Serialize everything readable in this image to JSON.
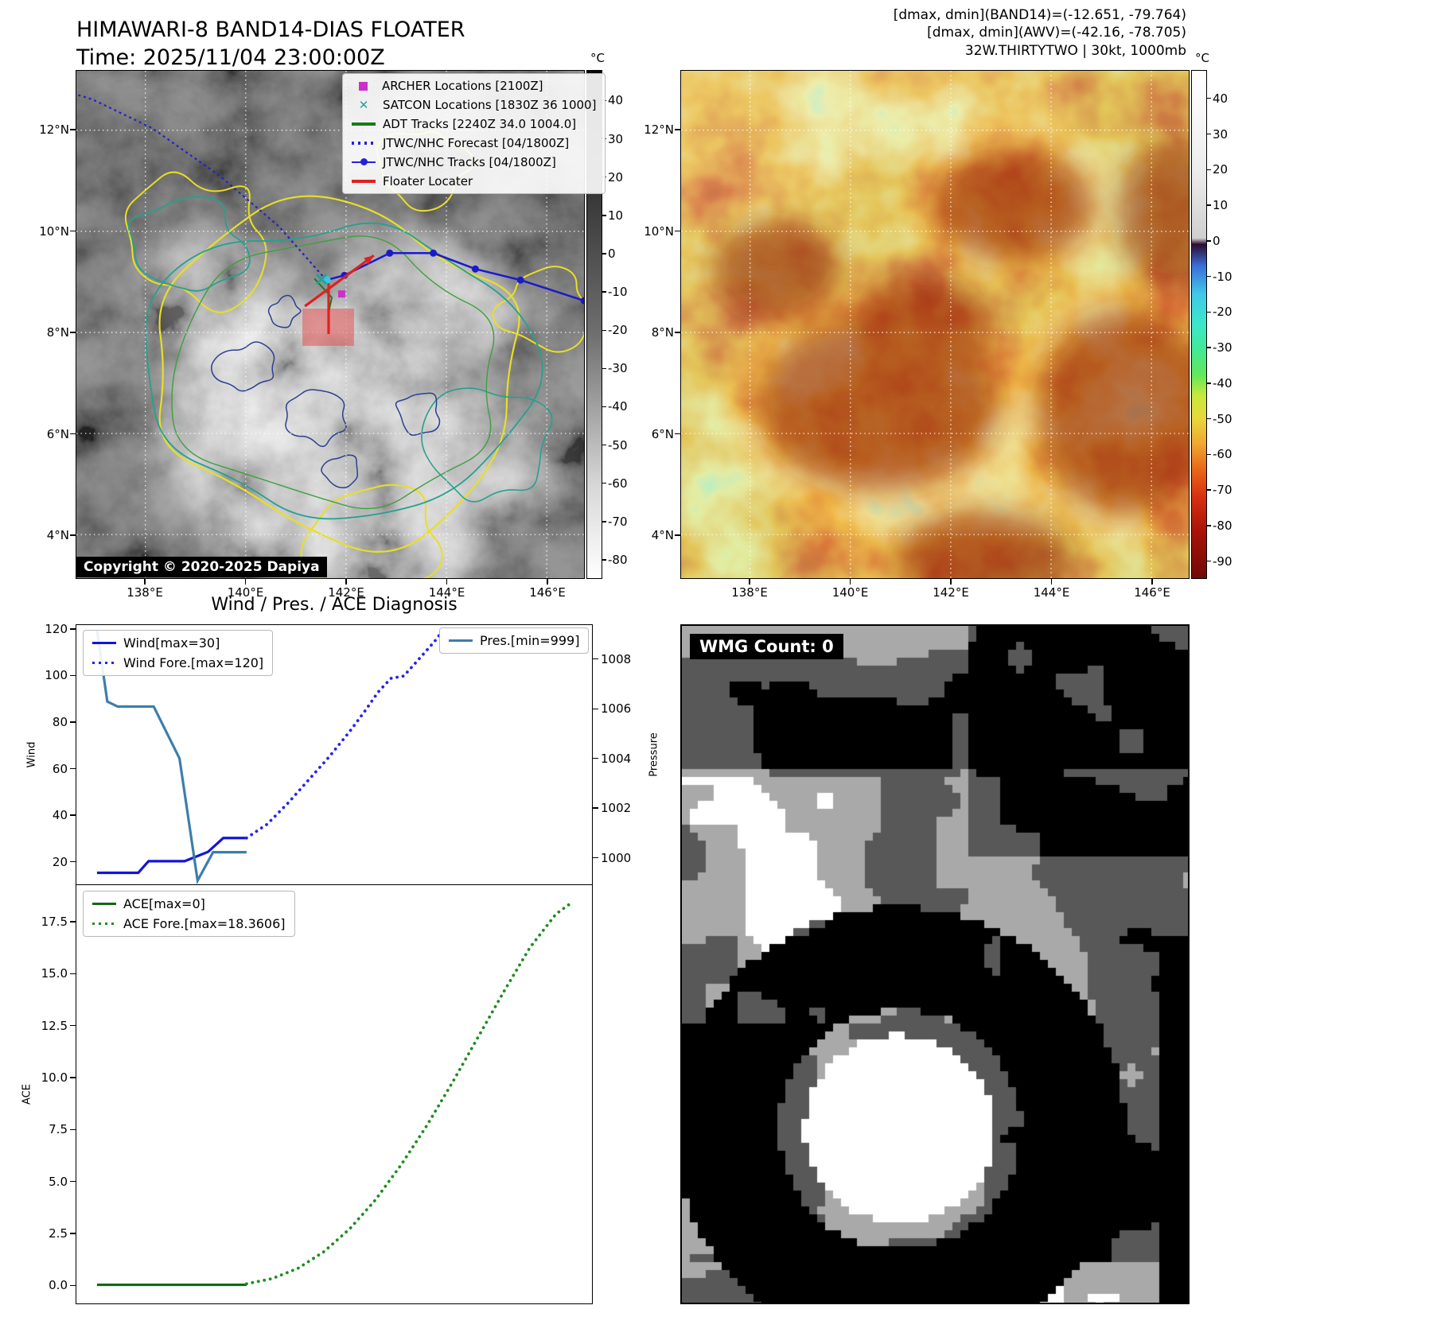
{
  "header": {
    "band14_title": "HIMAWARI-8 BAND14-DIAS FLOATER",
    "band14_time": "Time: 2025/11/04 23:00:00Z",
    "stats_line1": "[dmax, dmin](BAND14)=(-12.651, -79.764)",
    "stats_line2": "[dmax, dmin](AWV)=(-42.16, -78.705)",
    "stats_line3": "32W.THIRTYTWO | 30kt, 1000mb"
  },
  "band14_map": {
    "copyright": "Copyright © 2020-2025 Dapiya",
    "lat_ticks": [
      "12°N",
      "10°N",
      "8°N",
      "6°N",
      "4°N"
    ],
    "lon_ticks": [
      "138°E",
      "140°E",
      "142°E",
      "144°E",
      "146°E"
    ],
    "colorbar_unit": "°C",
    "colorbar_ticks": [
      "40",
      "30",
      "20",
      "10",
      "0",
      "-10",
      "-20",
      "-30",
      "-40",
      "-50",
      "-60",
      "-70",
      "-80"
    ],
    "legend_items": [
      {
        "label": "ARCHER Locations [2100Z]",
        "type": "square",
        "color": "#c832c8"
      },
      {
        "label": "SATCON Locations [1830Z 36 1000]",
        "type": "x",
        "color": "#26a09a"
      },
      {
        "label": "ADT Tracks [2240Z 34.0 1004.0]",
        "type": "line",
        "color": "#1a7a1a"
      },
      {
        "label": "JTWC/NHC Forecast [04/1800Z]",
        "type": "dotted",
        "color": "#2222dd"
      },
      {
        "label": "JTWC/NHC Tracks [04/1800Z]",
        "type": "line-dot",
        "color": "#2222dd"
      },
      {
        "label": "Floater Locater",
        "type": "line",
        "color": "#e02020"
      }
    ]
  },
  "awv_map": {
    "lat_ticks": [
      "12°N",
      "10°N",
      "8°N",
      "6°N",
      "4°N"
    ],
    "lon_ticks": [
      "138°E",
      "140°E",
      "142°E",
      "144°E",
      "146°E"
    ],
    "colorbar_unit": "°C",
    "colorbar_ticks": [
      "40",
      "30",
      "20",
      "10",
      "0",
      "-10",
      "-20",
      "-30",
      "-40",
      "-50",
      "-60",
      "-70",
      "-80",
      "-90"
    ]
  },
  "wmg": {
    "label": "WMG Count: 0"
  },
  "chart_data": [
    {
      "type": "line",
      "title": "Wind / Pres. / ACE Diagnosis",
      "ylabel_left": "Wind",
      "ylabel_right": "Pressure",
      "yticks_left": [
        "20",
        "40",
        "60",
        "80",
        "100",
        "120"
      ],
      "yticks_right": [
        "1000",
        "1002",
        "1004",
        "1006",
        "1008"
      ],
      "ylim_left": [
        10,
        122
      ],
      "ylim_right": [
        998.9,
        1009.4
      ],
      "xlim": [
        0,
        1
      ],
      "legend": [
        "Wind[max=30]",
        "Wind Fore.[max=120]",
        "Pres.[min=999]"
      ],
      "series": [
        {
          "name": "Wind[max=30]",
          "axis": "left",
          "style": "solid",
          "color": "#1414dc",
          "x": [
            0.04,
            0.12,
            0.14,
            0.21,
            0.255,
            0.285,
            0.33
          ],
          "y": [
            15,
            15,
            20,
            20,
            24,
            30,
            30
          ]
        },
        {
          "name": "Wind Fore.[max=120]",
          "axis": "left",
          "style": "dotted",
          "color": "#2525e8",
          "x": [
            0.33,
            0.37,
            0.41,
            0.45,
            0.49,
            0.53,
            0.56,
            0.585,
            0.61,
            0.635,
            0.655,
            0.675,
            0.695,
            0.705
          ],
          "y": [
            30,
            36,
            45,
            55,
            65,
            76,
            85,
            93,
            99,
            100,
            105,
            110,
            115,
            118
          ]
        },
        {
          "name": "Pres.[min=999]",
          "axis": "right",
          "style": "solid",
          "color": "#3d7eaa",
          "x": [
            0.04,
            0.06,
            0.08,
            0.15,
            0.2,
            0.235,
            0.265,
            0.33
          ],
          "y": [
            1009.2,
            1006.3,
            1006.1,
            1006.1,
            1004.0,
            999.05,
            1000.2,
            1000.2
          ]
        }
      ]
    },
    {
      "type": "line",
      "ylabel_left": "ACE",
      "yticks_left": [
        "0.0",
        "2.5",
        "5.0",
        "7.5",
        "10.0",
        "12.5",
        "15.0",
        "17.5"
      ],
      "ylim_left": [
        -0.9,
        19.3
      ],
      "xlim": [
        0,
        1
      ],
      "legend": [
        "ACE[max=0]",
        "ACE Fore.[max=18.3606]"
      ],
      "series": [
        {
          "name": "ACE[max=0]",
          "axis": "left",
          "style": "solid",
          "color": "#156615",
          "x": [
            0.04,
            0.33
          ],
          "y": [
            0,
            0
          ]
        },
        {
          "name": "ACE Fore.[max=18.3606]",
          "axis": "left",
          "style": "dotted",
          "color": "#1e8c1e",
          "x": [
            0.33,
            0.38,
            0.43,
            0.48,
            0.53,
            0.58,
            0.63,
            0.68,
            0.73,
            0.78,
            0.83,
            0.88,
            0.93,
            0.955
          ],
          "y": [
            0.05,
            0.3,
            0.8,
            1.6,
            2.7,
            4.1,
            5.8,
            7.7,
            9.8,
            12.0,
            14.2,
            16.3,
            17.9,
            18.36
          ]
        }
      ]
    }
  ]
}
